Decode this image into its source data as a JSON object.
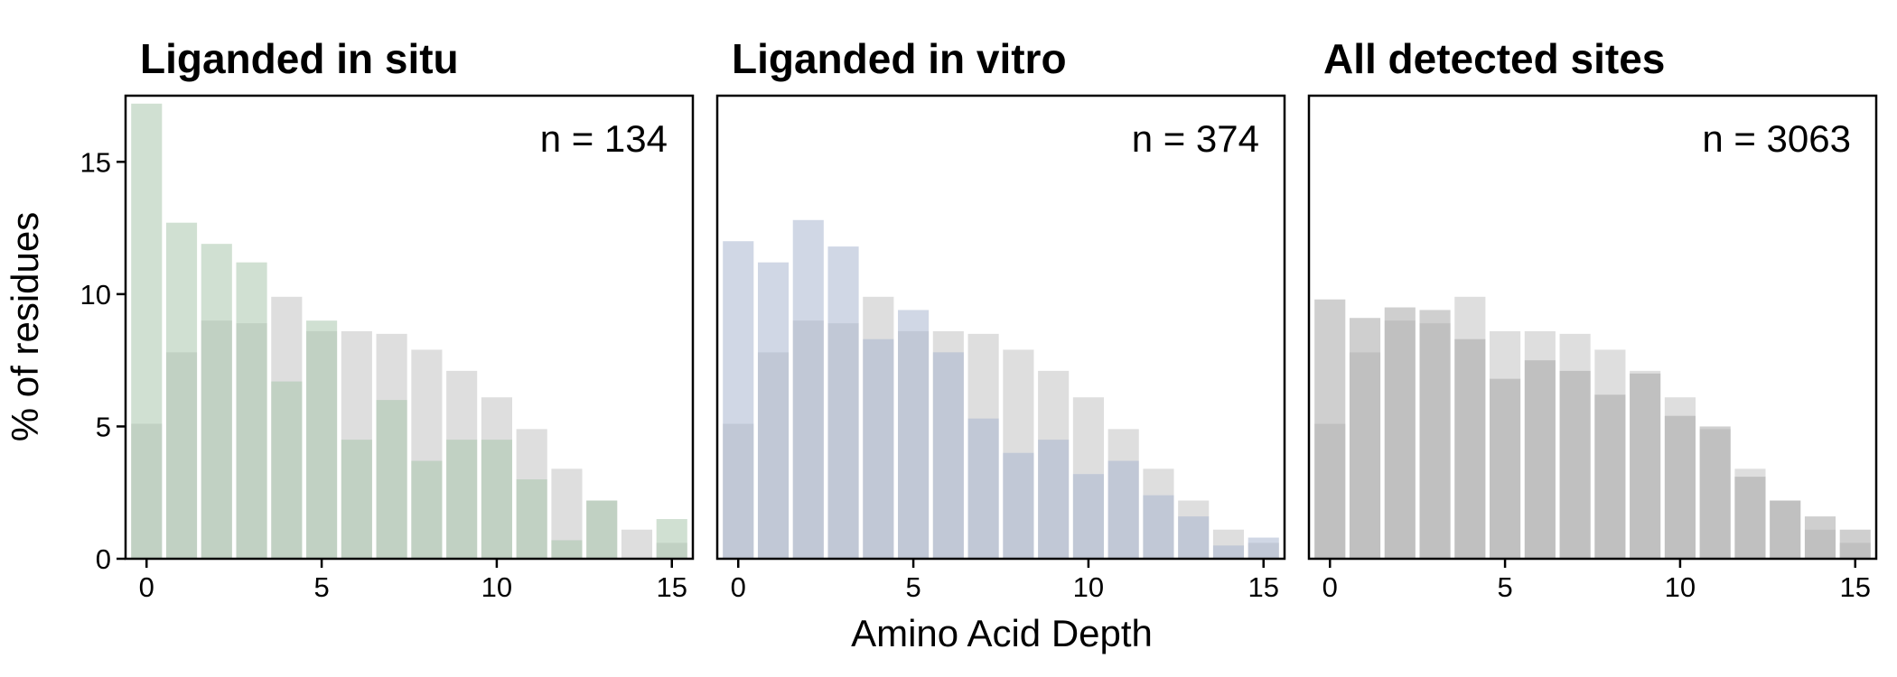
{
  "figure": {
    "ylabel": "% of residues",
    "xlabel": "Amino Acid Depth"
  },
  "chart_data": [
    {
      "type": "bar",
      "title": "Liganded in situ",
      "annotation": "n = 134",
      "xlim": [
        -0.6,
        15.6
      ],
      "ylim": [
        0,
        17.5
      ],
      "xticks": [
        0,
        5,
        10,
        15
      ],
      "yticks": [
        0,
        5,
        10,
        15
      ],
      "x": [
        0,
        1,
        2,
        3,
        4,
        5,
        6,
        7,
        8,
        9,
        10,
        11,
        12,
        13,
        14,
        15
      ],
      "series": [
        {
          "color": "#dedede",
          "values": [
            5.1,
            7.8,
            9.0,
            8.9,
            9.9,
            8.6,
            8.6,
            8.5,
            7.9,
            7.1,
            6.1,
            4.9,
            3.4,
            2.2,
            1.1,
            0.6
          ]
        },
        {
          "color": "#aac7ad",
          "values": [
            17.2,
            12.7,
            11.9,
            11.2,
            6.7,
            9.0,
            4.5,
            6.0,
            3.7,
            4.5,
            4.5,
            3.0,
            0.7,
            2.2,
            0,
            1.5
          ]
        }
      ]
    },
    {
      "type": "bar",
      "title": "Liganded in vitro",
      "annotation": "n = 374",
      "xlim": [
        -0.6,
        15.6
      ],
      "ylim": [
        0,
        17.5
      ],
      "xticks": [
        0,
        5,
        10,
        15
      ],
      "yticks": [
        0,
        5,
        10,
        15
      ],
      "x": [
        0,
        1,
        2,
        3,
        4,
        5,
        6,
        7,
        8,
        9,
        10,
        11,
        12,
        13,
        14,
        15
      ],
      "series": [
        {
          "color": "#dedede",
          "values": [
            5.1,
            7.8,
            9.0,
            8.9,
            9.9,
            8.6,
            8.6,
            8.5,
            7.9,
            7.1,
            6.1,
            4.9,
            3.4,
            2.2,
            1.1,
            0.6
          ]
        },
        {
          "color": "#a9b7d0",
          "values": [
            12.0,
            11.2,
            12.8,
            11.8,
            8.3,
            9.4,
            7.8,
            5.3,
            4.0,
            4.5,
            3.2,
            3.7,
            2.4,
            1.6,
            0.5,
            0.8
          ]
        }
      ]
    },
    {
      "type": "bar",
      "title": "All detected sites",
      "annotation": "n = 3063",
      "xlim": [
        -0.6,
        15.6
      ],
      "ylim": [
        0,
        17.5
      ],
      "xticks": [
        0,
        5,
        10,
        15
      ],
      "yticks": [
        0,
        5,
        10,
        15
      ],
      "x": [
        0,
        1,
        2,
        3,
        4,
        5,
        6,
        7,
        8,
        9,
        10,
        11,
        12,
        13,
        14,
        15
      ],
      "series": [
        {
          "color": "#dedede",
          "values": [
            5.1,
            7.8,
            9.0,
            8.9,
            9.9,
            8.6,
            8.6,
            8.5,
            7.9,
            7.1,
            6.1,
            4.9,
            3.4,
            2.2,
            1.1,
            0.6
          ]
        },
        {
          "color": "#a8a8a8",
          "values": [
            9.8,
            9.1,
            9.5,
            9.4,
            8.3,
            6.8,
            7.5,
            7.1,
            6.2,
            7.0,
            5.4,
            5.0,
            3.1,
            2.2,
            1.6,
            1.1
          ]
        }
      ]
    }
  ]
}
